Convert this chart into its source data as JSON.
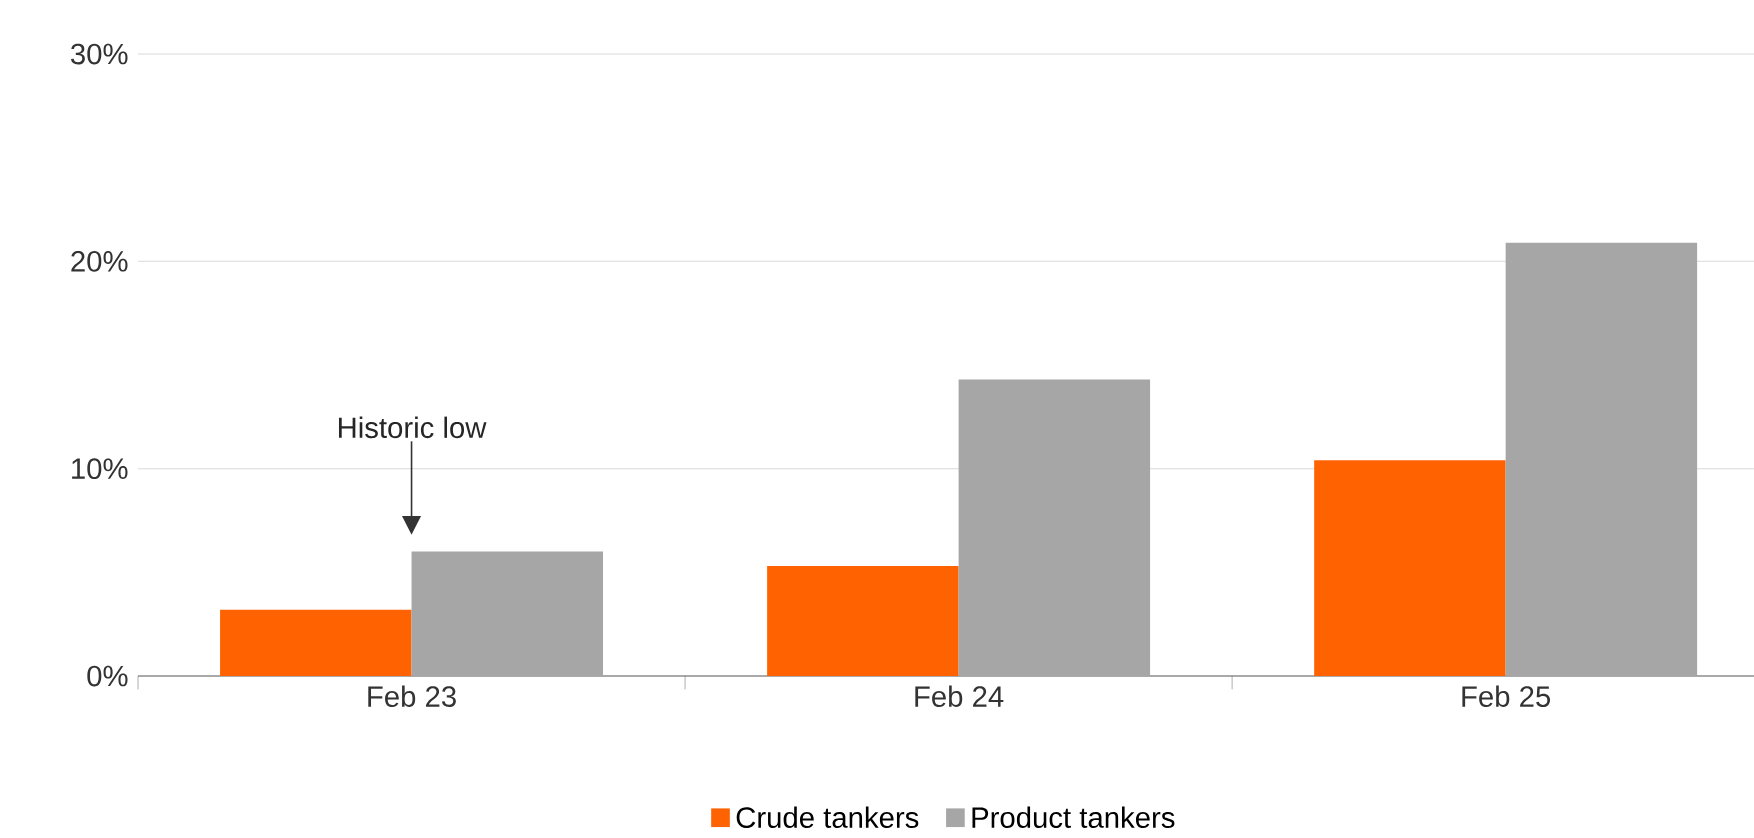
{
  "chart_data": {
    "type": "bar",
    "categories": [
      "Feb 23",
      "Feb 24",
      "Feb 25"
    ],
    "series": [
      {
        "name": "Crude tankers",
        "color": "#ff6200",
        "values": [
          3.2,
          5.3,
          10.4
        ]
      },
      {
        "name": "Product tankers",
        "color": "#a6a6a6",
        "values": [
          6.0,
          14.3,
          20.9
        ]
      }
    ],
    "ylim": [
      0,
      30
    ],
    "yticks": [
      {
        "value": 0,
        "label": "0%"
      },
      {
        "value": 10,
        "label": "10%"
      },
      {
        "value": 20,
        "label": "20%"
      },
      {
        "value": 30,
        "label": "30%"
      }
    ],
    "grid": "y",
    "legend": "bottom",
    "annotations": [
      "Historic low"
    ]
  }
}
